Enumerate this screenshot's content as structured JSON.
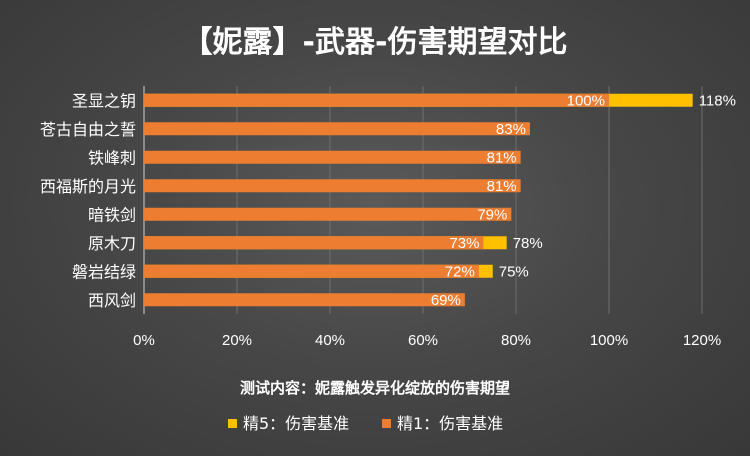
{
  "chart_data": {
    "type": "bar",
    "orientation": "horizontal",
    "stacked": "overlay",
    "title": "【妮露】-武器-伤害期望对比",
    "subtitle": "测试内容：妮露触发异化绽放的伤害期望",
    "categories": [
      "圣显之钥",
      "苍古自由之誓",
      "铁峰刺",
      "西福斯的月光",
      "暗铁剑",
      "原木刀",
      "磐岩结绿",
      "西风剑"
    ],
    "series": [
      {
        "name": "精5：伤害基准",
        "color": "#ffc000",
        "values": [
          118,
          null,
          null,
          null,
          null,
          78,
          75,
          null
        ],
        "labels": [
          "118%",
          "",
          "",
          "",
          "",
          "78%",
          "75%",
          ""
        ]
      },
      {
        "name": "精1：伤害基准",
        "color": "#ed7d31",
        "values": [
          100,
          83,
          81,
          81,
          79,
          73,
          72,
          69
        ],
        "labels": [
          "100%",
          "83%",
          "81%",
          "81%",
          "79%",
          "73%",
          "72%",
          "69%"
        ]
      }
    ],
    "xlim": [
      0,
      120
    ],
    "ticks": [
      0,
      20,
      40,
      60,
      80,
      100,
      120
    ],
    "tick_labels": [
      "0%",
      "20%",
      "40%",
      "60%",
      "80%",
      "100%",
      "120%"
    ],
    "grid": true,
    "legend_position": "bottom"
  },
  "legend": [
    {
      "name": "精5：伤害基准",
      "color": "#ffc000"
    },
    {
      "name": "精1：伤害基准",
      "color": "#ed7d31"
    }
  ]
}
